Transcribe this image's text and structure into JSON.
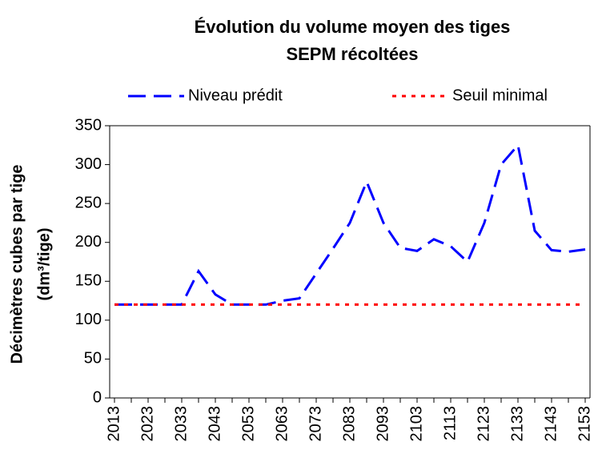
{
  "chart_data": {
    "type": "line",
    "title": [
      "Évolution du volume moyen des tiges",
      "SEPM récoltées"
    ],
    "ylabel": [
      "Décimètres cubes par tige",
      "(dm³/tige)"
    ],
    "categories": [
      "2013",
      null,
      "2023",
      null,
      "2033",
      null,
      "2043",
      null,
      "2053",
      null,
      "2063",
      null,
      "2073",
      null,
      "2083",
      null,
      "2093",
      null,
      "2103",
      null,
      "2113",
      null,
      "2123",
      null,
      "2133",
      null,
      "2143",
      null,
      "2153"
    ],
    "series": [
      {
        "name": "Niveau prédit",
        "color": "#0000ff",
        "style": "dashed",
        "values": [
          120,
          120,
          120,
          120,
          120,
          163,
          133,
          120,
          120,
          120,
          125,
          128,
          160,
          192,
          225,
          278,
          225,
          193,
          189,
          204,
          195,
          175,
          225,
          300,
          325,
          215,
          190,
          188,
          191
        ]
      },
      {
        "name": "Seuil minimal",
        "color": "#ff0000",
        "style": "dotted",
        "values": [
          120,
          120,
          120,
          120,
          120,
          120,
          120,
          120,
          120,
          120,
          120,
          120,
          120,
          120,
          120,
          120,
          120,
          120,
          120,
          120,
          120,
          120,
          120,
          120,
          120,
          120,
          120,
          120,
          120
        ]
      }
    ],
    "ylim": [
      0,
      350
    ],
    "yticks": [
      0,
      50,
      100,
      150,
      200,
      250,
      300,
      350
    ]
  }
}
